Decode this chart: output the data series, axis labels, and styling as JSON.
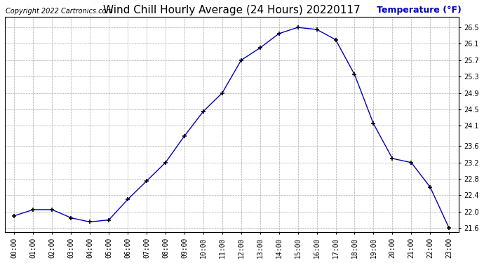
{
  "title": "Wind Chill Hourly Average (24 Hours) 20220117",
  "copyright_text": "Copyright 2022 Cartronics.com",
  "ylabel": "Temperature (°F)",
  "hours": [
    0,
    1,
    2,
    3,
    4,
    5,
    6,
    7,
    8,
    9,
    10,
    11,
    12,
    13,
    14,
    15,
    16,
    17,
    18,
    19,
    20,
    21,
    22,
    23
  ],
  "hour_labels": [
    "00:00",
    "01:00",
    "02:00",
    "03:00",
    "04:00",
    "05:00",
    "06:00",
    "07:00",
    "08:00",
    "09:00",
    "10:00",
    "11:00",
    "12:00",
    "13:00",
    "14:00",
    "15:00",
    "16:00",
    "17:00",
    "18:00",
    "19:00",
    "20:00",
    "21:00",
    "22:00",
    "23:00"
  ],
  "values": [
    21.9,
    22.05,
    22.05,
    21.85,
    21.75,
    21.8,
    22.3,
    22.75,
    23.2,
    23.85,
    24.45,
    24.9,
    25.7,
    26.0,
    26.35,
    26.5,
    26.45,
    26.2,
    25.35,
    24.15,
    23.3,
    23.2,
    22.6,
    21.6
  ],
  "ylim_min": 21.5,
  "ylim_max": 26.75,
  "ytick_labels": [
    "21.6",
    "22.0",
    "22.4",
    "22.8",
    "23.2",
    "23.6",
    "24.1",
    "24.5",
    "24.9",
    "25.3",
    "25.7",
    "26.1",
    "26.5"
  ],
  "ytick_values": [
    21.6,
    22.0,
    22.4,
    22.8,
    23.2,
    23.6,
    24.1,
    24.5,
    24.9,
    25.3,
    25.7,
    26.1,
    26.5
  ],
  "line_color": "#0000bb",
  "marker_color": "#000000",
  "grid_color": "#aaaaaa",
  "bg_color": "#ffffff",
  "title_color": "#000000",
  "ylabel_color": "#0000bb",
  "copyright_color": "#000000",
  "title_fontsize": 11,
  "ylabel_fontsize": 9,
  "copyright_fontsize": 7,
  "tick_fontsize": 7
}
